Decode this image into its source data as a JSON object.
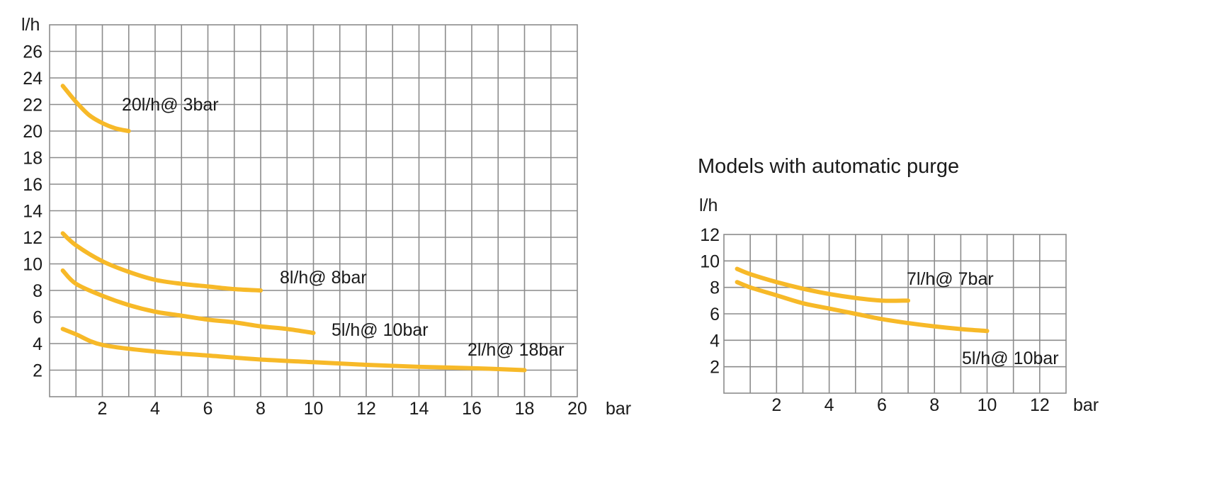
{
  "colors": {
    "curve": "#f7b928",
    "grid": "#8c8c8c",
    "text": "#1a1a1a"
  },
  "chart_data": [
    {
      "type": "line",
      "title": "",
      "xlabel": "bar",
      "ylabel": "l/h",
      "xlim": [
        0,
        20
      ],
      "ylim": [
        0,
        28
      ],
      "x_ticks": [
        2,
        4,
        6,
        8,
        10,
        12,
        14,
        16,
        18,
        20
      ],
      "y_ticks": [
        2,
        4,
        6,
        8,
        10,
        12,
        14,
        16,
        18,
        20,
        22,
        24,
        26
      ],
      "grid": true,
      "series": [
        {
          "name": "20l/h@ 3bar",
          "x": [
            0.5,
            1,
            1.5,
            2,
            2.5,
            3
          ],
          "y": [
            23.4,
            22.2,
            21.2,
            20.6,
            20.2,
            20.0
          ]
        },
        {
          "name": "8l/h@ 8bar",
          "x": [
            0.5,
            1,
            2,
            3,
            4,
            5,
            6,
            7,
            8
          ],
          "y": [
            12.3,
            11.4,
            10.2,
            9.4,
            8.8,
            8.5,
            8.3,
            8.1,
            8.0
          ]
        },
        {
          "name": "5l/h@ 10bar",
          "x": [
            0.5,
            1,
            2,
            3,
            4,
            5,
            6,
            7,
            8,
            9,
            10
          ],
          "y": [
            9.5,
            8.5,
            7.6,
            6.9,
            6.4,
            6.1,
            5.8,
            5.6,
            5.3,
            5.1,
            4.8
          ]
        },
        {
          "name": "2l/h@ 18bar",
          "x": [
            0.5,
            1,
            2,
            4,
            6,
            8,
            10,
            12,
            14,
            16,
            18
          ],
          "y": [
            5.1,
            4.7,
            3.9,
            3.4,
            3.1,
            2.8,
            2.6,
            2.4,
            2.25,
            2.15,
            2.0
          ]
        }
      ]
    },
    {
      "type": "line",
      "title": "Models with automatic purge",
      "xlabel": "bar",
      "ylabel": "l/h",
      "xlim": [
        0,
        13
      ],
      "ylim": [
        0,
        12
      ],
      "x_ticks": [
        2,
        4,
        6,
        8,
        10,
        12
      ],
      "y_ticks": [
        2,
        4,
        6,
        8,
        10,
        12
      ],
      "grid": true,
      "series": [
        {
          "name": "7l/h@ 7bar",
          "x": [
            0.5,
            1,
            2,
            3,
            4,
            5,
            6,
            7
          ],
          "y": [
            9.4,
            9.0,
            8.4,
            7.9,
            7.5,
            7.2,
            7.0,
            7.0
          ]
        },
        {
          "name": "5l/h@ 10bar",
          "x": [
            0.5,
            1,
            2,
            3,
            4,
            5,
            6,
            7,
            8,
            9,
            10
          ],
          "y": [
            8.4,
            8.0,
            7.4,
            6.8,
            6.4,
            6.0,
            5.6,
            5.3,
            5.05,
            4.85,
            4.7
          ]
        }
      ]
    }
  ]
}
